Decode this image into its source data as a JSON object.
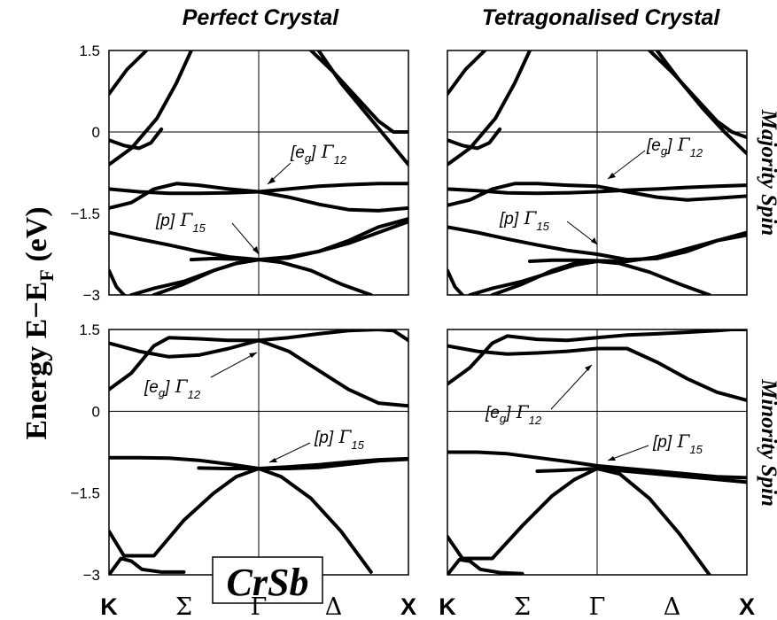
{
  "columns": [
    "Perfect Crystal",
    "Tetragonalised Crystal"
  ],
  "rows": [
    "Majority Spin",
    "Minority Spin"
  ],
  "ylabel": {
    "main": "Energy E−E",
    "sub": "F",
    "unit": " (eV)"
  },
  "badge": "CrSb",
  "kpoints": [
    {
      "label": "K",
      "style": "latin",
      "pos": 0
    },
    {
      "label": "Σ",
      "style": "greek",
      "pos": 0.5
    },
    {
      "label": "Γ",
      "style": "greek",
      "pos": 1
    },
    {
      "label": "Δ",
      "style": "greek",
      "pos": 1.5
    },
    {
      "label": "X",
      "style": "latin",
      "pos": 2
    }
  ],
  "annotations": {
    "eg": {
      "bracket": "[e",
      "bsub": "g",
      "close": "]",
      "greek": " Γ",
      "sub": "12"
    },
    "p": {
      "bracket": "[p]",
      "greek": " Γ",
      "sub": "15"
    }
  },
  "chart_data": [
    {
      "type": "line",
      "panel": "perfect-majority",
      "xlim": [
        0,
        2
      ],
      "ylim": [
        -3,
        1.5
      ],
      "yticks": [
        {
          "value": 1.5,
          "label": "1.5"
        },
        {
          "value": 0,
          "label": "0"
        },
        {
          "value": -1.5,
          "label": "−1.5"
        },
        {
          "value": -3,
          "label": "−3"
        }
      ],
      "series": [
        {
          "x": [
            0,
            0.12,
            0.25
          ],
          "y": [
            0.7,
            1.15,
            1.5
          ]
        },
        {
          "x": [
            0,
            0.15,
            0.32,
            0.45,
            0.55
          ],
          "y": [
            -0.6,
            -0.3,
            0.25,
            0.9,
            1.5
          ]
        },
        {
          "x": [
            0,
            0.1,
            0.2,
            0.28,
            0.35
          ],
          "y": [
            -0.15,
            -0.25,
            -0.3,
            -0.2,
            0.05
          ]
        },
        {
          "x": [
            1.4,
            1.55,
            1.7,
            1.85,
            2.0
          ],
          "y": [
            1.5,
            0.9,
            0.4,
            -0.1,
            -0.6
          ]
        },
        {
          "x": [
            1.35,
            1.5,
            1.65,
            1.8,
            1.9,
            2.0
          ],
          "y": [
            1.5,
            1.1,
            0.65,
            0.2,
            0.0,
            0.0
          ]
        },
        {
          "x": [
            0,
            0.2,
            0.4,
            0.6,
            0.8,
            1.0,
            1.2,
            1.4,
            1.6,
            1.8,
            2.0
          ],
          "y": [
            -1.05,
            -1.1,
            -1.13,
            -1.13,
            -1.12,
            -1.1,
            -1.05,
            -1.0,
            -0.97,
            -0.95,
            -0.95
          ]
        },
        {
          "x": [
            0,
            0.15,
            0.3,
            0.45,
            0.6,
            0.8,
            1.0,
            1.2,
            1.4,
            1.6,
            1.8,
            2.0
          ],
          "y": [
            -1.4,
            -1.3,
            -1.05,
            -0.95,
            -0.98,
            -1.05,
            -1.1,
            -1.2,
            -1.33,
            -1.43,
            -1.45,
            -1.4
          ]
        },
        {
          "x": [
            0,
            0.2,
            0.4,
            0.6,
            0.8,
            1.0,
            1.2,
            1.4,
            1.6,
            1.8,
            2.0
          ],
          "y": [
            -1.85,
            -1.97,
            -2.08,
            -2.2,
            -2.3,
            -2.35,
            -2.32,
            -2.2,
            -2.0,
            -1.75,
            -1.6
          ]
        },
        {
          "x": [
            0.55,
            0.7,
            0.85,
            1.0,
            1.2,
            1.4,
            1.6,
            1.8,
            2.0
          ],
          "y": [
            -2.35,
            -2.33,
            -2.34,
            -2.35,
            -2.3,
            -2.2,
            -2.05,
            -1.85,
            -1.65
          ]
        },
        {
          "x": [
            0,
            0.05,
            0.1
          ],
          "y": [
            -2.55,
            -2.85,
            -3.0
          ]
        },
        {
          "x": [
            0.15,
            0.3,
            0.5,
            0.7,
            0.85,
            1.0
          ],
          "y": [
            -3.0,
            -2.88,
            -2.75,
            -2.55,
            -2.42,
            -2.35
          ]
        },
        {
          "x": [
            0.3,
            0.5,
            0.7,
            0.85,
            1.0,
            1.15,
            1.35,
            1.55,
            1.75
          ],
          "y": [
            -3.0,
            -2.8,
            -2.55,
            -2.42,
            -2.35,
            -2.4,
            -2.55,
            -2.8,
            -3.0
          ]
        }
      ]
    },
    {
      "type": "line",
      "panel": "tetragonalised-majority",
      "xlim": [
        0,
        2
      ],
      "ylim": [
        -3,
        1.5
      ],
      "series": [
        {
          "x": [
            0,
            0.12,
            0.25
          ],
          "y": [
            0.7,
            1.15,
            1.5
          ]
        },
        {
          "x": [
            0,
            0.15,
            0.32,
            0.45,
            0.55
          ],
          "y": [
            -0.6,
            -0.3,
            0.25,
            0.9,
            1.5
          ]
        },
        {
          "x": [
            0,
            0.1,
            0.2,
            0.28,
            0.35
          ],
          "y": [
            -0.15,
            -0.25,
            -0.3,
            -0.2,
            0.05
          ]
        },
        {
          "x": [
            1.4,
            1.55,
            1.7,
            1.85,
            2.0
          ],
          "y": [
            1.5,
            0.95,
            0.45,
            0.0,
            -0.4
          ]
        },
        {
          "x": [
            1.35,
            1.5,
            1.65,
            1.8,
            1.9,
            2.0
          ],
          "y": [
            1.5,
            1.1,
            0.65,
            0.2,
            0.0,
            -0.1
          ]
        },
        {
          "x": [
            0,
            0.2,
            0.4,
            0.6,
            0.8,
            1.0,
            1.2,
            1.4,
            1.6,
            1.8,
            2.0
          ],
          "y": [
            -1.05,
            -1.08,
            -1.12,
            -1.13,
            -1.12,
            -1.1,
            -1.07,
            -1.05,
            -1.02,
            -1.0,
            -0.98
          ]
        },
        {
          "x": [
            0,
            0.15,
            0.3,
            0.45,
            0.6,
            0.8,
            1.0,
            1.2,
            1.4,
            1.6,
            1.8,
            2.0
          ],
          "y": [
            -1.35,
            -1.25,
            -1.05,
            -0.95,
            -0.95,
            -0.98,
            -1.0,
            -1.1,
            -1.2,
            -1.25,
            -1.22,
            -1.18
          ]
        },
        {
          "x": [
            0,
            0.2,
            0.4,
            0.6,
            0.8,
            1.0,
            1.2,
            1.4,
            1.6,
            1.8,
            2.0
          ],
          "y": [
            -1.75,
            -1.85,
            -1.97,
            -2.08,
            -2.18,
            -2.25,
            -2.35,
            -2.33,
            -2.2,
            -2.0,
            -1.85
          ]
        },
        {
          "x": [
            0.55,
            0.7,
            0.85,
            1.0,
            1.2,
            1.4,
            1.6,
            1.8,
            2.0
          ],
          "y": [
            -2.38,
            -2.36,
            -2.36,
            -2.37,
            -2.38,
            -2.3,
            -2.15,
            -2.0,
            -1.9
          ]
        },
        {
          "x": [
            0,
            0.05,
            0.1
          ],
          "y": [
            -2.55,
            -2.85,
            -3.0
          ]
        },
        {
          "x": [
            0.15,
            0.3,
            0.5,
            0.7,
            0.85,
            1.0
          ],
          "y": [
            -3.0,
            -2.88,
            -2.75,
            -2.58,
            -2.45,
            -2.38
          ]
        },
        {
          "x": [
            0.3,
            0.5,
            0.7,
            0.85,
            1.0,
            1.15,
            1.35,
            1.55,
            1.75
          ],
          "y": [
            -3.0,
            -2.8,
            -2.55,
            -2.42,
            -2.38,
            -2.42,
            -2.58,
            -2.8,
            -3.0
          ]
        }
      ]
    },
    {
      "type": "line",
      "panel": "perfect-minority",
      "xlim": [
        0,
        2
      ],
      "ylim": [
        -3,
        1.5
      ],
      "yticks": [
        {
          "value": 1.5,
          "label": "1.5"
        },
        {
          "value": 0,
          "label": "0"
        },
        {
          "value": -1.5,
          "label": "−1.5"
        },
        {
          "value": -3,
          "label": "−3"
        }
      ],
      "series": [
        {
          "x": [
            0,
            0.15,
            0.3,
            0.4,
            0.6,
            0.8,
            1.0,
            1.2,
            1.4,
            1.6,
            1.8,
            1.9,
            2.0
          ],
          "y": [
            0.4,
            0.7,
            1.2,
            1.35,
            1.33,
            1.3,
            1.3,
            1.35,
            1.42,
            1.48,
            1.5,
            1.48,
            1.3
          ]
        },
        {
          "x": [
            0,
            0.2,
            0.4,
            0.6,
            0.8,
            1.0,
            1.2,
            1.4,
            1.6,
            1.8,
            2.0
          ],
          "y": [
            1.25,
            1.1,
            1.0,
            1.03,
            1.15,
            1.3,
            1.1,
            0.75,
            0.4,
            0.15,
            0.1
          ]
        },
        {
          "x": [
            0,
            0.2,
            0.4,
            0.6,
            0.8,
            1.0,
            1.2,
            1.4,
            1.6,
            1.8,
            2.0
          ],
          "y": [
            -0.85,
            -0.85,
            -0.86,
            -0.9,
            -0.97,
            -1.05,
            -1.02,
            -0.98,
            -0.93,
            -0.89,
            -0.87
          ]
        },
        {
          "x": [
            0.6,
            0.8,
            1.0,
            1.2,
            1.4,
            1.6,
            1.8,
            2.0
          ],
          "y": [
            -1.04,
            -1.05,
            -1.05,
            -1.05,
            -1.03,
            -0.97,
            -0.91,
            -0.88
          ]
        },
        {
          "x": [
            0,
            0.1,
            0.3,
            0.5,
            0.7,
            0.85,
            1.0,
            1.15,
            1.35,
            1.55,
            1.75
          ],
          "y": [
            -2.2,
            -2.65,
            -2.65,
            -2.0,
            -1.5,
            -1.2,
            -1.05,
            -1.2,
            -1.6,
            -2.2,
            -2.95
          ]
        },
        {
          "x": [
            0,
            0.08,
            0.15,
            0.22,
            0.35,
            0.5
          ],
          "y": [
            -3.0,
            -2.7,
            -2.75,
            -2.9,
            -2.95,
            -2.95
          ]
        }
      ]
    },
    {
      "type": "line",
      "panel": "tetragonalised-minority",
      "xlim": [
        0,
        2
      ],
      "ylim": [
        -3,
        1.5
      ],
      "series": [
        {
          "x": [
            0,
            0.15,
            0.3,
            0.4,
            0.6,
            0.8,
            1.0,
            1.2,
            1.4,
            1.6,
            1.8,
            1.9,
            2.0
          ],
          "y": [
            0.5,
            0.8,
            1.25,
            1.38,
            1.32,
            1.3,
            1.35,
            1.4,
            1.42,
            1.45,
            1.48,
            1.5,
            1.5
          ]
        },
        {
          "x": [
            0,
            0.2,
            0.4,
            0.6,
            0.8,
            1.0,
            1.2,
            1.4,
            1.6,
            1.8,
            2.0
          ],
          "y": [
            1.2,
            1.1,
            1.05,
            1.07,
            1.1,
            1.15,
            1.15,
            0.9,
            0.6,
            0.35,
            0.2
          ]
        },
        {
          "x": [
            0,
            0.2,
            0.4,
            0.6,
            0.8,
            1.0,
            1.2,
            1.4,
            1.6,
            1.8,
            2.0
          ],
          "y": [
            -0.75,
            -0.75,
            -0.78,
            -0.85,
            -0.92,
            -1.0,
            -1.05,
            -1.1,
            -1.15,
            -1.2,
            -1.22
          ]
        },
        {
          "x": [
            0.6,
            0.8,
            1.0,
            1.2,
            1.4,
            1.6,
            1.8,
            2.0
          ],
          "y": [
            -1.1,
            -1.08,
            -1.05,
            -1.1,
            -1.15,
            -1.2,
            -1.25,
            -1.3
          ]
        },
        {
          "x": [
            0,
            0.1,
            0.3,
            0.5,
            0.7,
            0.85,
            1.0,
            1.15,
            1.35,
            1.55,
            1.75
          ],
          "y": [
            -2.3,
            -2.7,
            -2.7,
            -2.1,
            -1.55,
            -1.25,
            -1.05,
            -1.15,
            -1.6,
            -2.25,
            -3.0
          ]
        },
        {
          "x": [
            0,
            0.08,
            0.15,
            0.22,
            0.35,
            0.5
          ],
          "y": [
            -3.0,
            -2.72,
            -2.75,
            -2.9,
            -2.96,
            -2.98
          ]
        }
      ]
    }
  ]
}
